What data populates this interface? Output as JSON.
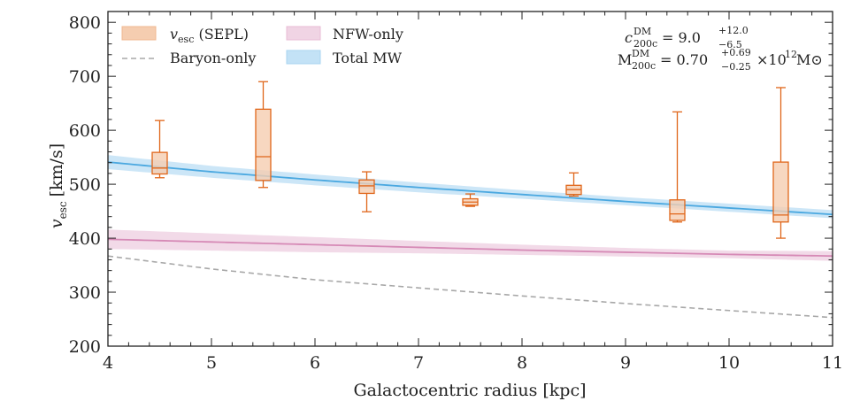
{
  "chart_data": {
    "type": "line",
    "title": "",
    "xlabel": "Galactocentric radius [kpc]",
    "ylabel_main": "v",
    "ylabel_sub": "esc",
    "ylabel_unit": "[km/s]",
    "xlim": [
      4,
      11
    ],
    "ylim": [
      200,
      820
    ],
    "xticks": [
      4,
      5,
      6,
      7,
      8,
      9,
      10,
      11
    ],
    "xtick_labels": [
      "4",
      "5",
      "6",
      "7",
      "8",
      "9",
      "10",
      "11"
    ],
    "yticks": [
      200,
      300,
      400,
      500,
      600,
      700,
      800
    ],
    "ytick_labels": [
      "200",
      "300",
      "400",
      "500",
      "600",
      "700",
      "800"
    ],
    "x_minor_step": 0.2,
    "y_minor_step": 20,
    "grid": false,
    "legend_placement": "top-left",
    "legend": [
      {
        "label_main": "v",
        "label_sub": "esc",
        "label_rest": " (SEPL)",
        "kind": "box",
        "color": "#f5cdb0",
        "edge": "#e0661a"
      },
      {
        "label": "Baryon-only",
        "kind": "dashed",
        "color": "#a0a0a0"
      },
      {
        "label": "NFW-only",
        "kind": "box",
        "color": "#f0d4e4",
        "edge": "#e8bcd6"
      },
      {
        "label": "Total MW",
        "kind": "box",
        "color": "#c3e2f6",
        "edge": "#a8d4f0"
      }
    ],
    "annotation": {
      "line1_lhs": "c",
      "line1_sup": "DM",
      "line1_sub": "200c",
      "line1_val": "= 9.0",
      "line1_plus": "+12.0",
      "line1_minus": "−6.5",
      "line2_lhs": "M",
      "line2_sup": "DM",
      "line2_sub": "200c",
      "line2_val": "= 0.70",
      "line2_plus": "+0.69",
      "line2_minus": "−0.25",
      "line2_tail": "×10",
      "line2_exp": "12",
      "line2_unit": "M⊙"
    },
    "series": [
      {
        "name": "Total MW",
        "kind": "band_line",
        "color": "#4aa8e0",
        "band_color": "#c3e2f6",
        "x": [
          4,
          5,
          6,
          7,
          8,
          9,
          10,
          11
        ],
        "y": [
          541,
          523,
          508,
          494,
          481,
          468,
          456,
          444
        ],
        "y_low": [
          528,
          512,
          498,
          485,
          473,
          461,
          449,
          437
        ],
        "y_high": [
          554,
          534,
          518,
          503,
          489,
          476,
          464,
          452
        ]
      },
      {
        "name": "NFW-only",
        "kind": "band_line",
        "color": "#d68ab6",
        "band_color": "#f0d4e4",
        "x": [
          4,
          5,
          6,
          7,
          8,
          9,
          10,
          11
        ],
        "y": [
          398,
          393,
          388,
          383,
          378,
          374,
          370,
          367
        ],
        "y_low": [
          380,
          377,
          374,
          372,
          369,
          366,
          363,
          358
        ],
        "y_high": [
          416,
          409,
          402,
          395,
          388,
          382,
          377,
          376
        ]
      },
      {
        "name": "Baryon-only",
        "kind": "dashed_line",
        "color": "#a8a8a8",
        "x": [
          4,
          5,
          6,
          7,
          8,
          9,
          10,
          11
        ],
        "y": [
          367,
          343,
          323,
          308,
          293,
          279,
          266,
          253
        ]
      }
    ],
    "boxes": {
      "name": "v_esc (SEPL)",
      "fill": "#f5cdb0",
      "edge": "#e0661a",
      "items": [
        {
          "x": 4.5,
          "whisker_low": 512,
          "q1": 519,
          "median": 530,
          "q3": 559,
          "whisker_high": 618
        },
        {
          "x": 5.5,
          "whisker_low": 494,
          "q1": 507,
          "median": 551,
          "q3": 639,
          "whisker_high": 690
        },
        {
          "x": 6.5,
          "whisker_low": 449,
          "q1": 483,
          "median": 497,
          "q3": 508,
          "whisker_high": 523
        },
        {
          "x": 7.5,
          "whisker_low": 459,
          "q1": 461,
          "median": 467,
          "q3": 473,
          "whisker_high": 482
        },
        {
          "x": 8.5,
          "whisker_low": 478,
          "q1": 481,
          "median": 490,
          "q3": 498,
          "whisker_high": 521
        },
        {
          "x": 9.5,
          "whisker_low": 430,
          "q1": 433,
          "median": 445,
          "q3": 471,
          "whisker_high": 634
        },
        {
          "x": 10.5,
          "whisker_low": 400,
          "q1": 430,
          "median": 443,
          "q3": 541,
          "whisker_high": 679
        }
      ]
    }
  }
}
